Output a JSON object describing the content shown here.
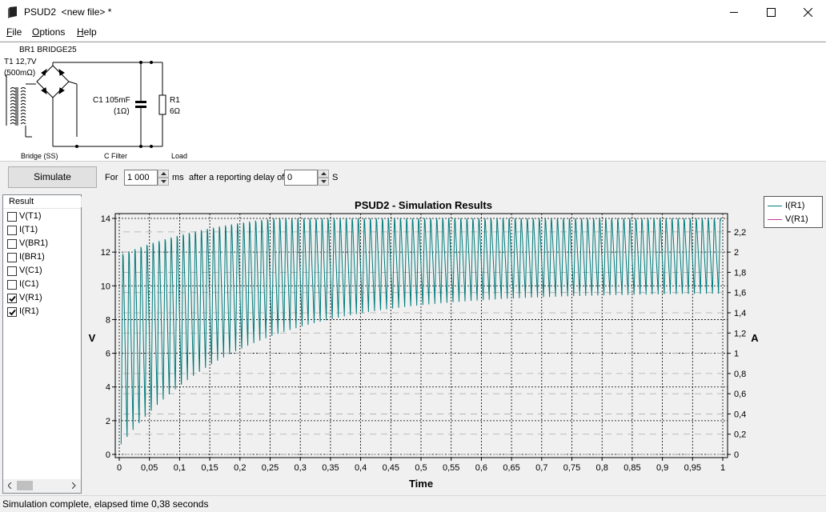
{
  "window": {
    "title": "PSUD2  <new file> *"
  },
  "menu": {
    "file": "File",
    "options": "Options",
    "help": "Help"
  },
  "schematic": {
    "bridge_label": "BR1 BRIDGE25",
    "transformer_label": "T1 12,7V",
    "transformer_resistance": "(500mΩ)",
    "capacitor_label": "C1 105mF",
    "capacitor_resistance": "(1Ω)",
    "resistor_label": "R1",
    "resistor_value": "6Ω",
    "section_bridge": "Bridge (SS)",
    "section_filter": "C Filter",
    "section_load": "Load"
  },
  "controls": {
    "simulate_label": "Simulate",
    "for_label": "For",
    "duration_value": "1 000",
    "ms_label": "ms",
    "delay_label": "after a reporting delay of",
    "delay_value": "0",
    "s_label": "S"
  },
  "results": {
    "header": "Result",
    "items": [
      {
        "label": "V(T1)",
        "checked": false
      },
      {
        "label": "I(T1)",
        "checked": false
      },
      {
        "label": "V(BR1)",
        "checked": false
      },
      {
        "label": "I(BR1)",
        "checked": false
      },
      {
        "label": "V(C1)",
        "checked": false
      },
      {
        "label": "I(C1)",
        "checked": false
      },
      {
        "label": "V(R1)",
        "checked": true
      },
      {
        "label": "I(R1)",
        "checked": true
      }
    ]
  },
  "chart_data": {
    "type": "line",
    "title": "PSUD2 - Simulation Results",
    "xlabel": "Time",
    "ylabel": "V",
    "y2label": "A",
    "xlim": [
      0,
      1
    ],
    "ylim": [
      0,
      14
    ],
    "y2lim": [
      0,
      2.3333
    ],
    "x_ticks": [
      "0",
      "0,05",
      "0,1",
      "0,15",
      "0,2",
      "0,25",
      "0,3",
      "0,35",
      "0,4",
      "0,45",
      "0,5",
      "0,55",
      "0,6",
      "0,65",
      "0,7",
      "0,75",
      "0,8",
      "0,85",
      "0,9",
      "0,95",
      "1"
    ],
    "y_ticks": [
      "0",
      "2",
      "4",
      "6",
      "8",
      "10",
      "12",
      "14"
    ],
    "y2_ticks": [
      "0",
      "0,2",
      "0,4",
      "0,6",
      "0,8",
      "1",
      "1,2",
      "1,4",
      "1,6",
      "1,8",
      "2",
      "2,2"
    ],
    "grid": true,
    "legend_position": "top-right",
    "series": [
      {
        "name": "I(R1)",
        "color": "#007b7b",
        "axis": "left",
        "ripple_hz": 100,
        "peak_start": 11.9,
        "peak_final": 14.0,
        "trough_start": 0.6,
        "trough_final": 9.6,
        "rise_tau": 0.2
      },
      {
        "name": "V(R1)",
        "color": "#c8369b",
        "axis": "left",
        "hidden_under": "I(R1)"
      }
    ]
  },
  "status": {
    "text": "Simulation complete, elapsed time 0,38 seconds"
  }
}
